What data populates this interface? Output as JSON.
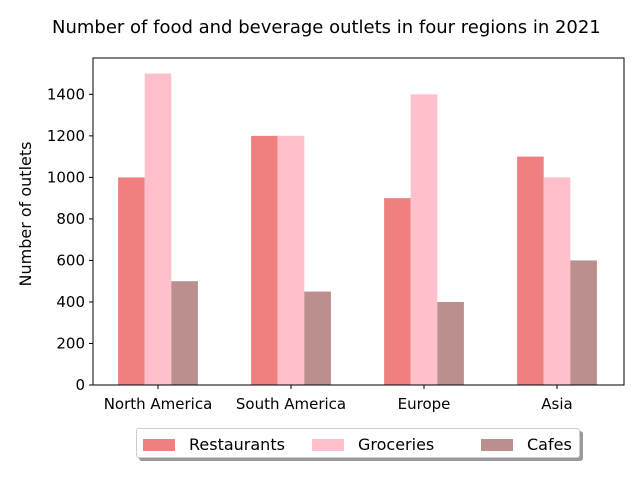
{
  "chart_data": {
    "type": "bar",
    "title": "Number of food and beverage outlets in four regions in 2021",
    "xlabel": "",
    "ylabel": "Number of outlets",
    "categories": [
      "North America",
      "South America",
      "Europe",
      "Asia"
    ],
    "series": [
      {
        "name": "Restaurants",
        "color": "#f08080",
        "values": [
          1000,
          1200,
          900,
          1100
        ]
      },
      {
        "name": "Groceries",
        "color": "#ffc0cb",
        "values": [
          1500,
          1200,
          1400,
          1000
        ]
      },
      {
        "name": "Cafes",
        "color": "#bc8f8f",
        "values": [
          500,
          450,
          400,
          600
        ]
      }
    ],
    "ylim": [
      0,
      1575
    ],
    "yticks": [
      0,
      200,
      400,
      600,
      800,
      1000,
      1200,
      1400
    ],
    "grid": false,
    "legend_position": "bottom-center"
  }
}
